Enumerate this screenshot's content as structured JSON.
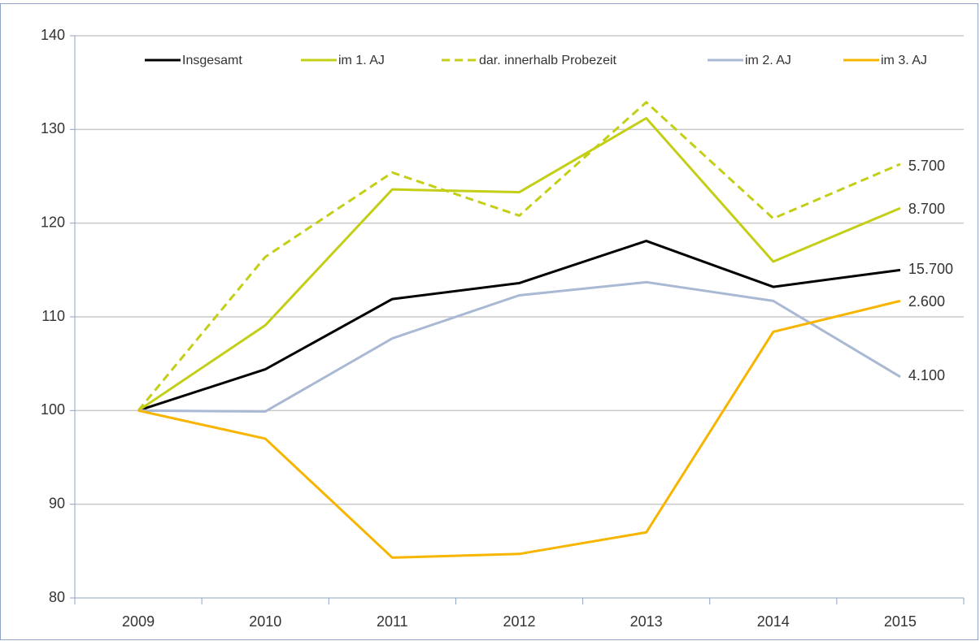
{
  "chart_data": {
    "type": "line",
    "categories": [
      "2009",
      "2010",
      "2011",
      "2012",
      "2013",
      "2014",
      "2015"
    ],
    "series": [
      {
        "name": "Insgesamt",
        "color": "#000000",
        "dashed": false,
        "values": [
          100,
          104.4,
          111.9,
          113.6,
          118.1,
          113.2,
          115.0
        ],
        "end_label": "15.700"
      },
      {
        "name": "im 1. AJ",
        "color": "#c3cf16",
        "dashed": false,
        "values": [
          100,
          109.1,
          123.6,
          123.3,
          131.2,
          115.9,
          121.6
        ],
        "end_label": "8.700"
      },
      {
        "name": "dar. innerhalb Probezeit",
        "color": "#c3cf16",
        "dashed": true,
        "values": [
          100,
          116.4,
          125.4,
          120.8,
          132.9,
          120.5,
          126.3
        ],
        "end_label": "5.700"
      },
      {
        "name": "im 2. AJ",
        "color": "#a9b9d3",
        "dashed": false,
        "values": [
          100,
          99.9,
          107.7,
          112.3,
          113.7,
          111.7,
          103.6
        ],
        "end_label": "4.100"
      },
      {
        "name": "im 3. AJ",
        "color": "#f7b500",
        "dashed": false,
        "values": [
          100,
          97.0,
          84.3,
          84.7,
          87.0,
          108.4,
          111.7
        ],
        "end_label": "2.600"
      }
    ],
    "ylim": [
      80,
      140
    ],
    "yticks": [
      80,
      90,
      100,
      110,
      120,
      130,
      140
    ],
    "grid": true,
    "legend": "top"
  }
}
